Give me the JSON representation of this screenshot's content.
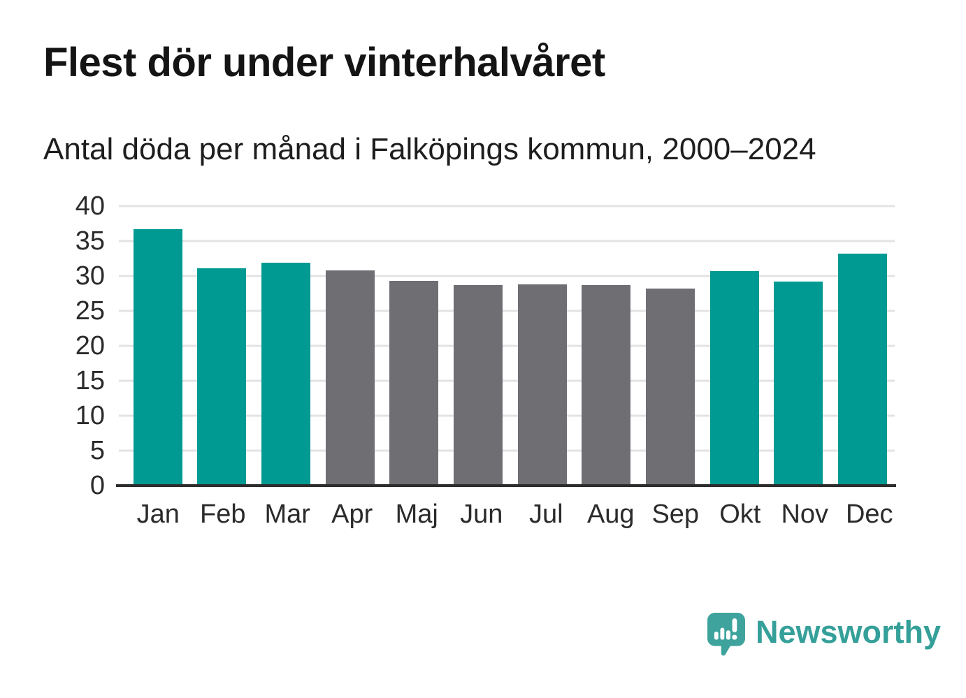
{
  "chart_data": {
    "type": "bar",
    "title": "Flest dör under vinterhalvåret",
    "subtitle": "Antal döda per månad i Falköpings kommun, 2000–2024",
    "categories": [
      "Jan",
      "Feb",
      "Mar",
      "Apr",
      "Maj",
      "Jun",
      "Jul",
      "Aug",
      "Sep",
      "Okt",
      "Nov",
      "Dec"
    ],
    "values": [
      36.7,
      31.1,
      31.9,
      30.8,
      29.3,
      28.7,
      28.8,
      28.7,
      28.2,
      30.7,
      29.2,
      33.2
    ],
    "bar_color_keys": [
      "highlight",
      "highlight",
      "highlight",
      "muted",
      "muted",
      "muted",
      "muted",
      "muted",
      "muted",
      "highlight",
      "highlight",
      "highlight"
    ],
    "palette": {
      "highlight": "#009a93",
      "muted": "#6f6e73",
      "gridline": "#e3e3e5",
      "axis_line": "#2d2d2d",
      "tick_text": "#2b2b2b"
    },
    "xlabel": "",
    "ylabel": "",
    "ylim": [
      0,
      40
    ],
    "yticks": [
      0,
      5,
      10,
      15,
      20,
      25,
      30,
      35,
      40
    ],
    "grid": "horizontal",
    "legend": "none"
  },
  "footer": {
    "brand": "Newsworthy",
    "brand_color": "#35a099",
    "logo_icon": "newsworthy-speech-bubble-bar-chart-icon",
    "logo_bubble_color": "#3da39c"
  }
}
